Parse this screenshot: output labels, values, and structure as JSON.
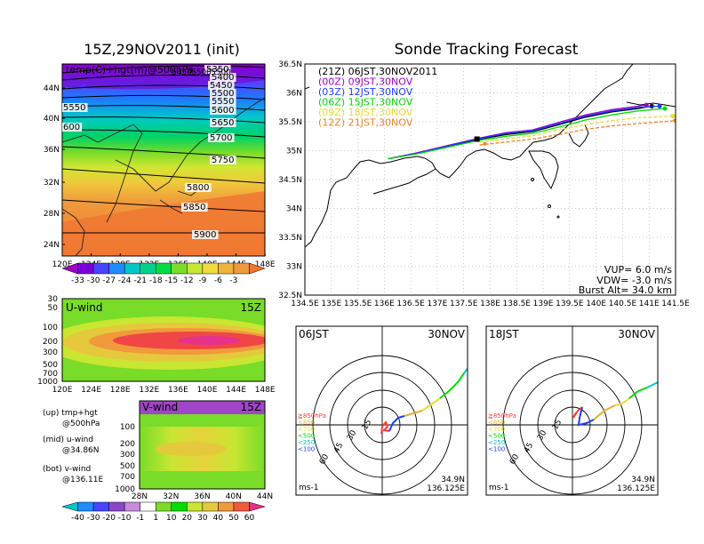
{
  "colors": {
    "purple": "#a000c8",
    "blue": "#1e3cff",
    "cyan": "#00c8c8",
    "green": "#00dc00",
    "lime": "#a0e632",
    "yellow": "#e6dc32",
    "orange": "#e6af2d",
    "dorange": "#f08228",
    "red": "#fa3c3c",
    "magenta": "#f00082"
  },
  "left_top": {
    "title": "15Z,29NOV2011 (init)",
    "label": "temp(C)+hgt(m)@500hPa",
    "lat_ticks": [
      "44N",
      "40N",
      "36N",
      "32N",
      "28N",
      "24N"
    ],
    "lon_ticks": [
      "120E",
      "124E",
      "128E",
      "132E",
      "136E",
      "140E",
      "144E",
      "148E"
    ],
    "contours": [
      "5350",
      "5400",
      "5450",
      "5500",
      "5550",
      "5600",
      "5650",
      "5700",
      "5750",
      "5800",
      "5850",
      "5900"
    ],
    "left_contours": [
      "5550",
      "600"
    ],
    "top_clip": [
      "5450",
      "5500",
      "5500"
    ],
    "colorbar": [
      "-33",
      "-30",
      "-27",
      "-24",
      "-21",
      "-18",
      "-15",
      "-12",
      "-9",
      "-6",
      "-3"
    ]
  },
  "uwind": {
    "label": "U-wind",
    "time": "15Z",
    "p_ticks": [
      "30",
      "50",
      "100",
      "200",
      "300",
      "500",
      "700",
      "1000"
    ],
    "lon_ticks": [
      "120E",
      "124E",
      "128E",
      "132E",
      "136E",
      "140E",
      "144E",
      "148E"
    ]
  },
  "vwind": {
    "label": "V-wind",
    "time": "15Z",
    "p_ticks": [
      "100",
      "200",
      "300",
      "500",
      "700",
      "1000"
    ],
    "lat_ticks": [
      "28N",
      "32N",
      "36N",
      "40N",
      "44N"
    ]
  },
  "legend_notes": [
    {
      "a": "(up) tmp+hgt",
      "b": "@500hPa"
    },
    {
      "a": "(mid) u-wind",
      "b": "@34.86N"
    },
    {
      "a": "(bot) v-wind",
      "b": "@136.11E"
    }
  ],
  "bottom_colorbar": [
    "-40",
    "-30",
    "-20",
    "-10",
    "-1",
    "1",
    "10",
    "20",
    "30",
    "40",
    "50",
    "60"
  ],
  "chart_data": {
    "type": "line",
    "title": "Sonde Tracking Forecast",
    "lat_ticks": [
      "36.5N",
      "36N",
      "35.5N",
      "35N",
      "34.5N",
      "34N",
      "33.5N",
      "33N",
      "32.5N"
    ],
    "lon_ticks": [
      "134.5E",
      "135E",
      "135.5E",
      "136E",
      "136.5E",
      "137E",
      "137.5E",
      "138E",
      "138.5E",
      "139E",
      "139.5E",
      "140E",
      "140.5E",
      "141E",
      "141.5E"
    ],
    "xlim": [
      134.5,
      141.5
    ],
    "ylim": [
      32.5,
      36.5
    ],
    "series": [
      {
        "name": "(21Z) 06JST,30NOV2011",
        "color": "#000000",
        "points": [
          [
            136.07,
            34.86
          ],
          [
            136.6,
            34.95
          ],
          [
            137.2,
            35.07
          ],
          [
            137.8,
            35.2
          ],
          [
            138.3,
            35.28
          ],
          [
            138.8,
            35.33
          ],
          [
            139.3,
            35.45
          ],
          [
            139.8,
            35.58
          ],
          [
            140.3,
            35.67
          ],
          [
            140.8,
            35.73
          ],
          [
            141.05,
            35.77
          ]
        ]
      },
      {
        "name": "(00Z) 09JST,30NOV",
        "color": "#a000c8",
        "points": [
          [
            136.07,
            34.86
          ],
          [
            136.6,
            34.96
          ],
          [
            137.2,
            35.09
          ],
          [
            137.8,
            35.22
          ],
          [
            138.3,
            35.31
          ],
          [
            138.8,
            35.36
          ],
          [
            139.3,
            35.49
          ],
          [
            139.8,
            35.62
          ],
          [
            140.3,
            35.71
          ],
          [
            140.8,
            35.77
          ],
          [
            140.95,
            35.79
          ]
        ]
      },
      {
        "name": "(03Z) 12JST,30NOV",
        "color": "#1e3cff",
        "points": [
          [
            136.07,
            34.86
          ],
          [
            136.6,
            34.95
          ],
          [
            137.2,
            35.08
          ],
          [
            137.8,
            35.21
          ],
          [
            138.3,
            35.3
          ],
          [
            138.8,
            35.35
          ],
          [
            139.3,
            35.47
          ],
          [
            139.8,
            35.6
          ],
          [
            140.3,
            35.69
          ],
          [
            140.8,
            35.75
          ],
          [
            141.2,
            35.77
          ]
        ]
      },
      {
        "name": "(06Z) 15JST,30NOV",
        "color": "#00dc00",
        "points": [
          [
            136.07,
            34.86
          ],
          [
            136.6,
            34.94
          ],
          [
            137.2,
            35.06
          ],
          [
            137.8,
            35.18
          ],
          [
            138.3,
            35.25
          ],
          [
            138.8,
            35.3
          ],
          [
            139.3,
            35.41
          ],
          [
            139.8,
            35.53
          ],
          [
            140.3,
            35.62
          ],
          [
            140.8,
            35.69
          ],
          [
            141.3,
            35.73
          ]
        ]
      },
      {
        "name": "(09Z) 18JST,30NOV",
        "color": "#e6dc32",
        "dashed": true,
        "points": [
          [
            137.8,
            35.15
          ],
          [
            138.3,
            35.2
          ],
          [
            138.8,
            35.26
          ],
          [
            139.3,
            35.36
          ],
          [
            139.8,
            35.45
          ],
          [
            140.3,
            35.52
          ],
          [
            140.8,
            35.57
          ],
          [
            141.45,
            35.6
          ]
        ]
      },
      {
        "name": "(12Z) 21JST,30NOV",
        "color": "#f08228",
        "dashed": true,
        "points": [
          [
            137.8,
            35.1
          ],
          [
            138.3,
            35.15
          ],
          [
            138.8,
            35.2
          ],
          [
            139.3,
            35.28
          ],
          [
            139.8,
            35.37
          ],
          [
            140.3,
            35.43
          ],
          [
            140.8,
            35.47
          ],
          [
            141.5,
            35.52
          ]
        ]
      }
    ],
    "info": {
      "vup": "VUP= 6.0 m/s",
      "vdw": "VDW= -3.0 m/s",
      "burst": "Burst Alt= 34.0 km"
    }
  },
  "hodo1": {
    "time": "06JST",
    "date": "30NOV",
    "lat": "34.9N",
    "lon": "136.125E",
    "unit": "ms-1",
    "rings": [
      "15",
      "30",
      "45",
      "60"
    ],
    "legend": [
      {
        "t": "≧850hPa",
        "c": "#fa3c3c"
      },
      {
        "t": "<850",
        "c": "#e6af2d"
      },
      {
        "t": "<700",
        "c": "#e6dc32"
      },
      {
        "t": "<500",
        "c": "#00dc00"
      },
      {
        "t": "<250",
        "c": "#00c8c8"
      },
      {
        "t": "<100",
        "c": "#1e3cff"
      }
    ]
  },
  "hodo2": {
    "time": "18JST",
    "date": "30NOV",
    "lat": "34.9N",
    "lon": "136.125E",
    "unit": "ms-1",
    "rings": [
      "15",
      "30",
      "45",
      "60"
    ],
    "legend": [
      {
        "t": "≧850hPa",
        "c": "#fa3c3c"
      },
      {
        "t": "<850",
        "c": "#e6af2d"
      },
      {
        "t": "<700",
        "c": "#e6dc32"
      },
      {
        "t": "<500",
        "c": "#00dc00"
      },
      {
        "t": "<250",
        "c": "#00c8c8"
      },
      {
        "t": "<100",
        "c": "#1e3cff"
      }
    ]
  }
}
